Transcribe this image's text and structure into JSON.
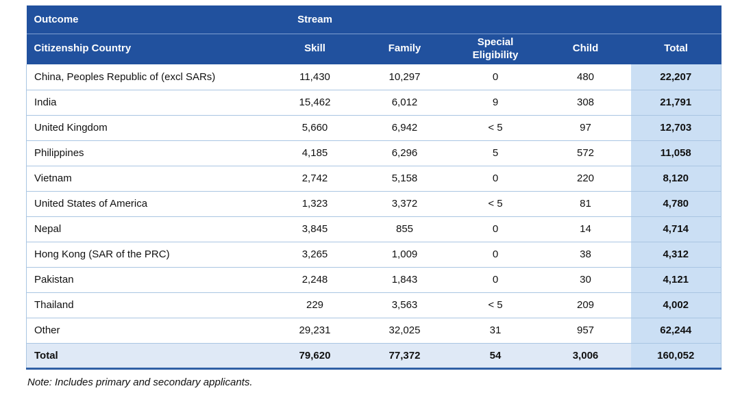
{
  "colors": {
    "header_bg": "#21519E",
    "header_text": "#FFFFFF",
    "total_column_bg": "#CBDFF4",
    "total_row_bg": "#DFE9F6",
    "row_border": "#A9C5E2",
    "header_divider": "#7F9FD0",
    "bottom_border": "#2F5FA5",
    "body_text": "#101010"
  },
  "table": {
    "header": {
      "outcome": "Outcome",
      "stream": "Stream"
    },
    "columns": [
      "Citizenship Country",
      "Skill",
      "Family",
      "Special Eligibility",
      "Child",
      "Total"
    ],
    "rows": [
      {
        "country": "China, Peoples Republic of (excl SARs)",
        "skill": "11,430",
        "family": "10,297",
        "special": "0",
        "child": "480",
        "total": "22,207"
      },
      {
        "country": "India",
        "skill": "15,462",
        "family": "6,012",
        "special": "9",
        "child": "308",
        "total": "21,791"
      },
      {
        "country": "United Kingdom",
        "skill": "5,660",
        "family": "6,942",
        "special": "< 5",
        "child": "97",
        "total": "12,703"
      },
      {
        "country": "Philippines",
        "skill": "4,185",
        "family": "6,296",
        "special": "5",
        "child": "572",
        "total": "11,058"
      },
      {
        "country": "Vietnam",
        "skill": "2,742",
        "family": "5,158",
        "special": "0",
        "child": "220",
        "total": "8,120"
      },
      {
        "country": "United States of America",
        "skill": "1,323",
        "family": "3,372",
        "special": "< 5",
        "child": "81",
        "total": "4,780"
      },
      {
        "country": "Nepal",
        "skill": "3,845",
        "family": "855",
        "special": "0",
        "child": "14",
        "total": "4,714"
      },
      {
        "country": "Hong Kong (SAR of the PRC)",
        "skill": "3,265",
        "family": "1,009",
        "special": "0",
        "child": "38",
        "total": "4,312"
      },
      {
        "country": "Pakistan",
        "skill": "2,248",
        "family": "1,843",
        "special": "0",
        "child": "30",
        "total": "4,121"
      },
      {
        "country": "Thailand",
        "skill": "229",
        "family": "3,563",
        "special": "< 5",
        "child": "209",
        "total": "4,002"
      },
      {
        "country": "Other",
        "skill": "29,231",
        "family": "32,025",
        "special": "31",
        "child": "957",
        "total": "62,244"
      }
    ],
    "total_row": {
      "country": "Total",
      "skill": "79,620",
      "family": "77,372",
      "special": "54",
      "child": "3,006",
      "total": "160,052"
    }
  },
  "note": "Note: Includes primary and secondary applicants."
}
